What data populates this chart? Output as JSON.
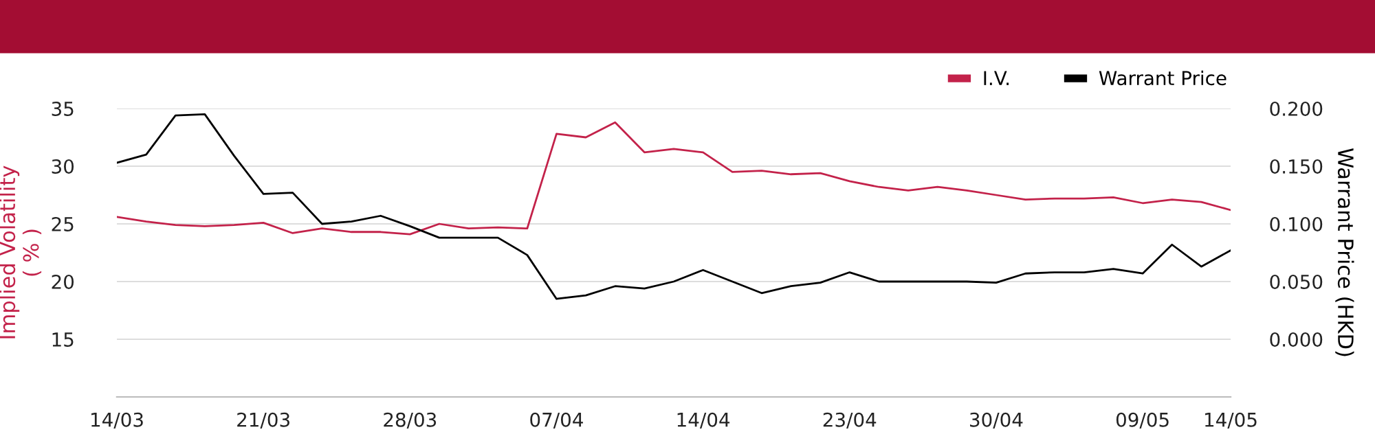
{
  "chart_data": {
    "type": "line",
    "categories": [
      "14/03",
      null,
      null,
      null,
      null,
      "21/03",
      null,
      null,
      null,
      null,
      "28/03",
      null,
      null,
      null,
      null,
      "07/04",
      null,
      null,
      null,
      null,
      "14/04",
      null,
      null,
      null,
      null,
      "23/04",
      null,
      null,
      null,
      null,
      "30/04",
      null,
      null,
      null,
      null,
      "09/05",
      null,
      null,
      "14/05"
    ],
    "series": [
      {
        "name": "I.V.",
        "color": "#c3224a",
        "values": [
          25.6,
          25.2,
          24.9,
          24.8,
          24.9,
          25.1,
          24.2,
          24.6,
          24.3,
          24.3,
          24.1,
          25.0,
          24.6,
          24.7,
          24.6,
          32.8,
          32.5,
          33.8,
          31.2,
          31.5,
          31.2,
          29.5,
          29.6,
          29.3,
          29.4,
          28.7,
          28.2,
          27.9,
          28.2,
          27.9,
          27.5,
          27.1,
          27.2,
          27.2,
          27.3,
          26.8,
          27.1,
          26.9,
          26.2
        ]
      },
      {
        "name": "Warrant Price",
        "color": "#000000",
        "axis": "y2",
        "values": [
          0.153,
          0.16,
          0.194,
          0.195,
          0.159,
          0.126,
          0.127,
          0.1,
          0.102,
          0.107,
          0.098,
          0.088,
          0.088,
          0.088,
          0.073,
          0.035,
          0.038,
          0.046,
          0.044,
          0.05,
          0.06,
          0.05,
          0.04,
          0.046,
          0.049,
          0.058,
          0.05,
          0.05,
          0.05,
          0.05,
          0.049,
          0.057,
          0.058,
          0.058,
          0.061,
          0.057,
          0.082,
          0.063,
          0.077
        ]
      }
    ],
    "ylabel": "Implied Volatility\n( % )",
    "y2label": "Warrant Price (HKD)",
    "ylim": [
      10,
      35
    ],
    "yticks": [
      15,
      20,
      25,
      30,
      35
    ],
    "y2lim": [
      -0.05,
      0.2
    ],
    "y2ticks": [
      {
        "value": 0,
        "label": "0.000"
      },
      {
        "value": 0.05,
        "label": "0.050"
      },
      {
        "value": 0.1,
        "label": "0.100"
      },
      {
        "value": 0.15,
        "label": "0.150"
      },
      {
        "value": 0.2,
        "label": "0.200"
      }
    ],
    "grid": "y",
    "legend": "top right",
    "marker": "none",
    "line_style": "solid"
  }
}
